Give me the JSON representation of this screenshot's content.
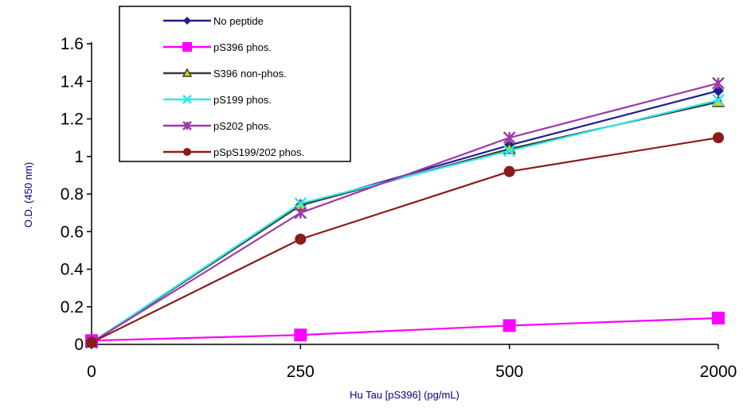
{
  "chart_data": {
    "type": "line",
    "title": "",
    "xlabel": "Hu Tau [pS396] (pg/mL)",
    "ylabel": "O.D. (450 nm)",
    "categories": [
      "0",
      "250",
      "500",
      "2000"
    ],
    "ylim": [
      0,
      1.6
    ],
    "yticks": [
      "0",
      "0.2",
      "0.4",
      "0.6",
      "0.8",
      "1",
      "1.2",
      "1.4",
      "1.6"
    ],
    "grid": false,
    "legend_position": "top-left inside plot",
    "series": [
      {
        "name": "No peptide",
        "values": [
          0.01,
          0.74,
          1.06,
          1.35
        ],
        "color": "#1f1f8f",
        "marker": "diamond"
      },
      {
        "name": "pS396 phos.",
        "values": [
          0.02,
          0.05,
          0.1,
          0.14
        ],
        "color": "#ff00ff",
        "marker": "square"
      },
      {
        "name": "S396 non-phos.",
        "values": [
          0.01,
          0.74,
          1.04,
          1.29
        ],
        "color": "#3a3a3a",
        "marker": "triangle"
      },
      {
        "name": "pS199 phos.",
        "values": [
          0.01,
          0.75,
          1.03,
          1.3
        ],
        "color": "#33e6e6",
        "marker": "x"
      },
      {
        "name": "pS202 phos.",
        "values": [
          0.01,
          0.7,
          1.1,
          1.39
        ],
        "color": "#9b3aa8",
        "marker": "star"
      },
      {
        "name": "pSpS199/202 phos.",
        "values": [
          0.01,
          0.56,
          0.92,
          1.1
        ],
        "color": "#8b1a1a",
        "marker": "circle"
      }
    ]
  }
}
